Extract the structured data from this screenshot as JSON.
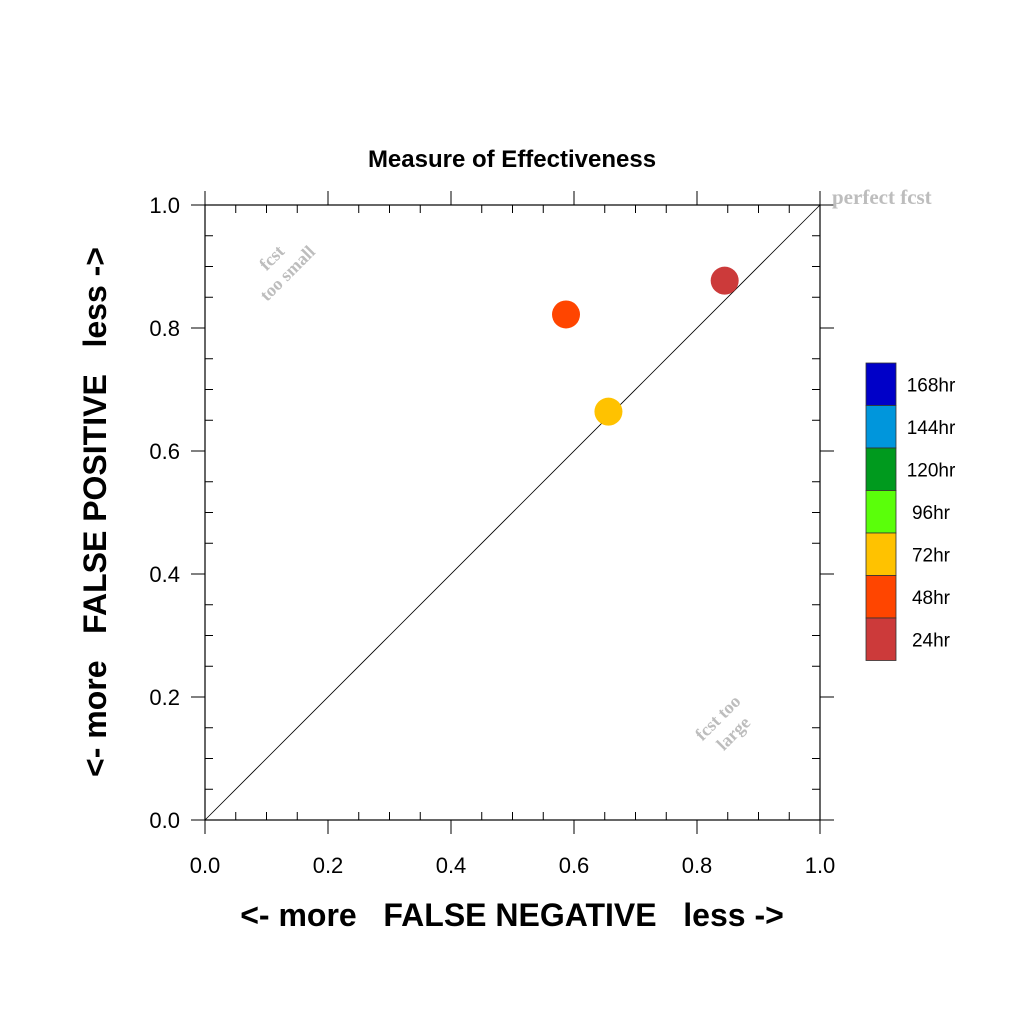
{
  "chart_data": {
    "type": "scatter",
    "title": "Measure of Effectiveness",
    "xlabel": "<- more   FALSE NEGATIVE   less ->",
    "ylabel": "<- more   FALSE POSITIVE   less ->",
    "xlim": [
      0.0,
      1.0
    ],
    "ylim": [
      0.0,
      1.0
    ],
    "xticks": [
      "0.0",
      "0.2",
      "0.4",
      "0.6",
      "0.8",
      "1.0"
    ],
    "yticks": [
      "0.0",
      "0.2",
      "0.4",
      "0.6",
      "0.8",
      "1.0"
    ],
    "grid": false,
    "reference_line": "diagonal",
    "points": [
      {
        "label": "24hr",
        "x": 0.845,
        "y": 0.877,
        "color": "#cc3a3a"
      },
      {
        "label": "48hr",
        "x": 0.587,
        "y": 0.822,
        "color": "#ff4500"
      },
      {
        "label": "72hr",
        "x": 0.656,
        "y": 0.664,
        "color": "#ffc200"
      }
    ],
    "annotations": {
      "top_right": "perfect fcst",
      "upper_left": [
        "fcst",
        "too small"
      ],
      "lower_right": [
        "fcst too",
        "large"
      ]
    },
    "legend": {
      "placement": "right",
      "entries": [
        {
          "label": "168hr",
          "color": "#0000c8"
        },
        {
          "label": "144hr",
          "color": "#0096dc"
        },
        {
          "label": "120hr",
          "color": "#009a1e"
        },
        {
          "label": "96hr",
          "color": "#5aff0a"
        },
        {
          "label": "72hr",
          "color": "#ffc200"
        },
        {
          "label": "48hr",
          "color": "#ff4500"
        },
        {
          "label": "24hr",
          "color": "#cc3a3a"
        }
      ]
    }
  }
}
